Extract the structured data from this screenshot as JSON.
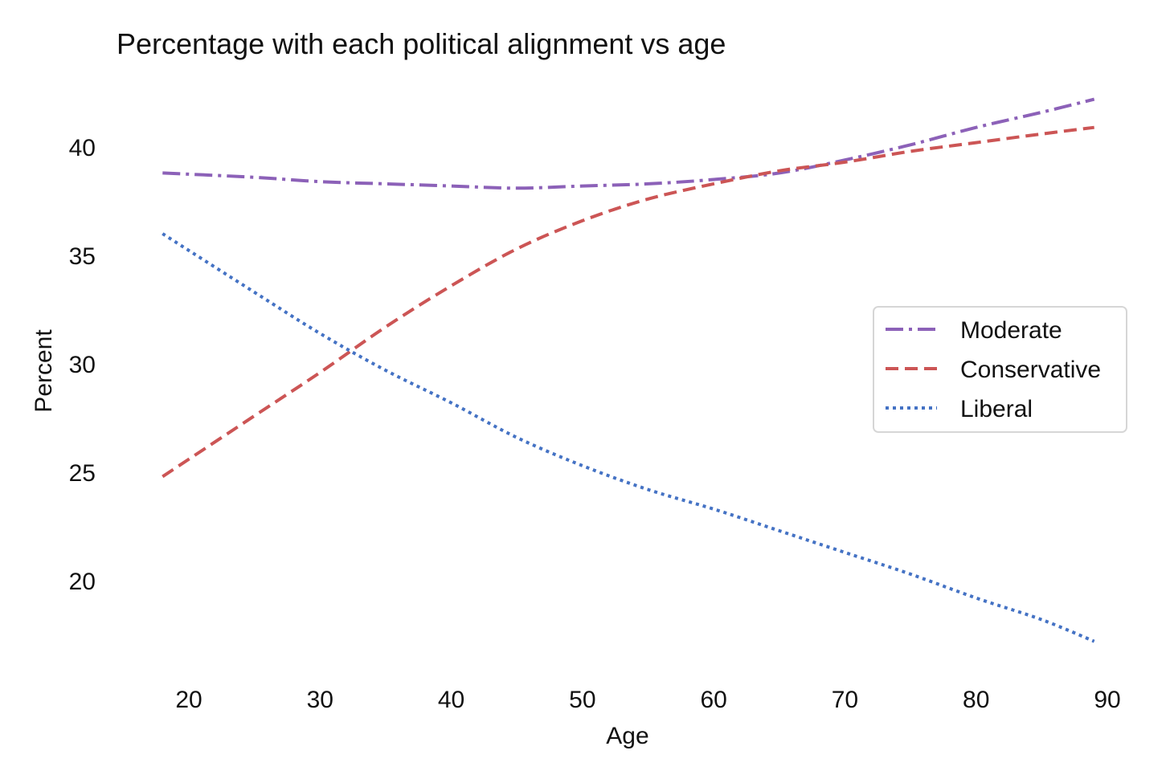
{
  "chart_data": {
    "type": "line",
    "title": "Percentage with each political alignment vs age",
    "xlabel": "Age",
    "ylabel": "Percent",
    "xlim": [
      16,
      91
    ],
    "ylim": [
      16.5,
      43
    ],
    "xticks": [
      20,
      30,
      40,
      50,
      60,
      70,
      80,
      90
    ],
    "yticks": [
      20,
      25,
      30,
      35,
      40
    ],
    "grid": false,
    "legend": "center-right",
    "series": [
      {
        "name": "Moderate",
        "color": "#8c61b8",
        "dash": "dashdot",
        "x": [
          18,
          25,
          30,
          35,
          40,
          45,
          50,
          55,
          60,
          65,
          70,
          75,
          80,
          85,
          89
        ],
        "y": [
          38.8,
          38.6,
          38.4,
          38.3,
          38.2,
          38.1,
          38.2,
          38.3,
          38.5,
          38.8,
          39.4,
          40.1,
          40.9,
          41.6,
          42.2
        ]
      },
      {
        "name": "Conservative",
        "color": "#cc5555",
        "dash": "dashed",
        "x": [
          18,
          25,
          30,
          35,
          40,
          45,
          50,
          55,
          60,
          65,
          70,
          75,
          80,
          85,
          89
        ],
        "y": [
          24.8,
          27.6,
          29.6,
          31.7,
          33.6,
          35.3,
          36.6,
          37.6,
          38.3,
          38.9,
          39.3,
          39.8,
          40.2,
          40.6,
          40.9
        ]
      },
      {
        "name": "Liberal",
        "color": "#4472c4",
        "dash": "dotted",
        "x": [
          18,
          25,
          30,
          35,
          40,
          45,
          50,
          55,
          60,
          65,
          70,
          75,
          80,
          85,
          89
        ],
        "y": [
          36.0,
          33.3,
          31.4,
          29.7,
          28.2,
          26.6,
          25.3,
          24.2,
          23.3,
          22.3,
          21.3,
          20.3,
          19.2,
          18.2,
          17.2
        ]
      }
    ]
  }
}
